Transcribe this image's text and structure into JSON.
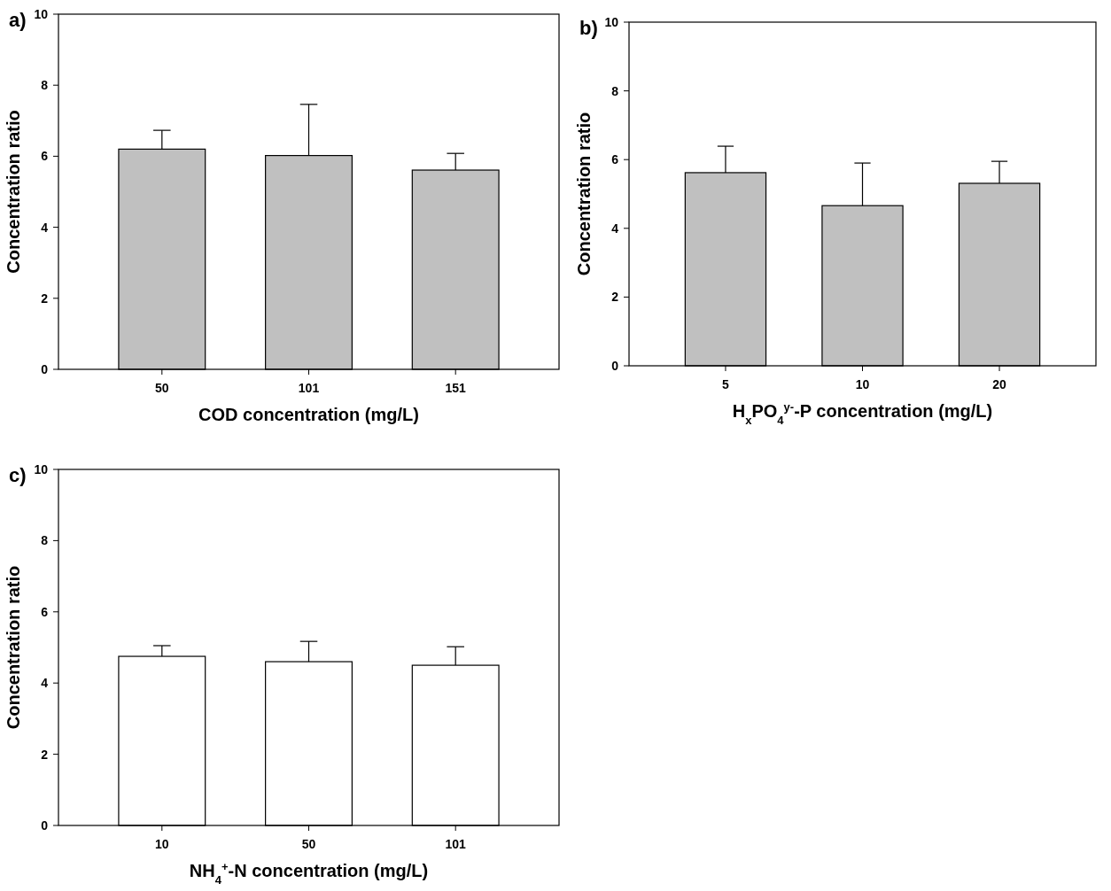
{
  "chart_data": [
    {
      "type": "bar",
      "title": "a)",
      "xlabel": "COD concentration (mg/L)",
      "ylabel": "Concentration ratio",
      "categories": [
        "50",
        "101",
        "151"
      ],
      "values": [
        6.2,
        6.02,
        5.61
      ],
      "errors": [
        [
          6.2,
          6.73
        ],
        [
          6.02,
          7.46
        ],
        [
          5.61,
          6.08
        ]
      ],
      "color": "#c0c0c0",
      "ylim": [
        0,
        10
      ],
      "yticks": [
        0,
        2,
        4,
        6,
        8,
        10
      ],
      "grid": false
    },
    {
      "type": "bar",
      "title": "b)",
      "xlabel": "H$_{x}$PO$_{4}$$^{y-}$-P concentration (mg/L)",
      "ylabel": "Concentration ratio",
      "categories": [
        "5",
        "10",
        "20"
      ],
      "values": [
        5.62,
        4.66,
        5.31
      ],
      "errors": [
        [
          5.62,
          6.39
        ],
        [
          4.66,
          5.9
        ],
        [
          5.31,
          5.95
        ]
      ],
      "color": "#c0c0c0",
      "ylim": [
        0,
        10
      ],
      "yticks": [
        0,
        2,
        4,
        6,
        8,
        10
      ],
      "grid": false
    },
    {
      "type": "bar",
      "title": "c)",
      "xlabel": "NH$_{4}$$^{+}$-N concentration (mg/L)",
      "ylabel": "Concentration ratio",
      "categories": [
        "10",
        "50",
        "101"
      ],
      "values": [
        4.75,
        4.6,
        4.5
      ],
      "errors": [
        [
          4.75,
          5.05
        ],
        [
          4.6,
          5.17
        ],
        [
          4.5,
          5.02
        ]
      ],
      "color": "#ffffff",
      "ylim": [
        0,
        10
      ],
      "yticks": [
        0,
        2,
        4,
        6,
        8,
        10
      ],
      "grid": false
    }
  ]
}
